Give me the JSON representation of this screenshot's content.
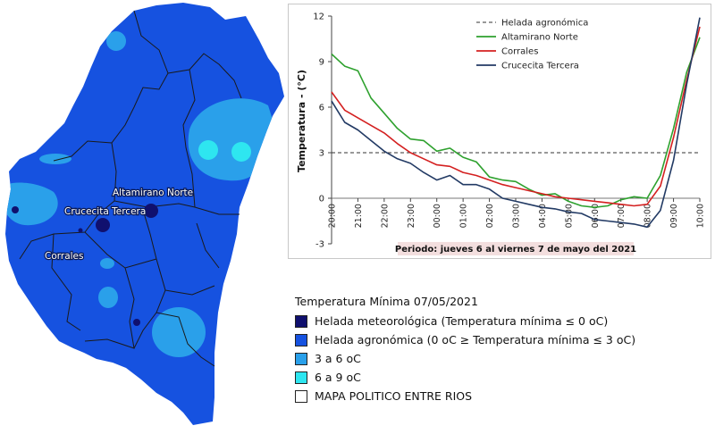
{
  "map": {
    "stations": [
      {
        "name": "Altamirano Norte"
      },
      {
        "name": "Crucecita Tercera"
      },
      {
        "name": "Corrales"
      }
    ]
  },
  "legend": {
    "title": "Temperatura Mínima 07/05/2021",
    "items": [
      {
        "label": "Helada meteorológica (Temperatura mínima ≤ 0 oC)",
        "color": "#10106e"
      },
      {
        "label": "Helada agronómica  (0 oC ≥ Temperatura mínima ≤ 3 oC)",
        "color": "#1652e0"
      },
      {
        "label": "3 a 6 oC",
        "color": "#2aa0ea"
      },
      {
        "label": "6 a 9 oC",
        "color": "#2ee6f0"
      },
      {
        "label": "MAPA POLITICO ENTRE RIOS",
        "color": "#ffffff"
      }
    ]
  },
  "chart_data": {
    "type": "line",
    "title": "",
    "xlabel": "",
    "ylabel": "Temperatura - (°C)",
    "period_label": "Periodo: jueves 6 al viernes 7 de mayo del 2021",
    "ylim": [
      -3,
      12
    ],
    "yticks": [
      -3,
      0,
      3,
      6,
      9,
      12
    ],
    "x_tick_labels": [
      "20:00",
      "21:00",
      "22:00",
      "23:00",
      "00:00",
      "01:00",
      "02:00",
      "03:00",
      "04:00",
      "05:00",
      "06:00",
      "07:00",
      "08:00",
      "09:00",
      "10:00"
    ],
    "x_hours": [
      0,
      0.5,
      1,
      1.5,
      2,
      2.5,
      3,
      3.5,
      4,
      4.5,
      5,
      5.5,
      6,
      6.5,
      7,
      7.5,
      8,
      8.5,
      9,
      9.5,
      10,
      10.5,
      11,
      11.5,
      12,
      12.5,
      13,
      13.5,
      14
    ],
    "series": [
      {
        "name": "Helada agronómica",
        "color": "#333333",
        "dashed": true,
        "values": [
          3,
          3,
          3,
          3,
          3,
          3,
          3,
          3,
          3,
          3,
          3,
          3,
          3,
          3,
          3,
          3,
          3,
          3,
          3,
          3,
          3,
          3,
          3,
          3,
          3,
          3,
          3,
          3,
          3
        ]
      },
      {
        "name": "Altamirano Norte",
        "color": "#2ea12e",
        "dashed": false,
        "values": [
          9.5,
          8.7,
          8.4,
          6.6,
          5.6,
          4.6,
          3.9,
          3.8,
          3.1,
          3.3,
          2.7,
          2.4,
          1.4,
          1.2,
          1.1,
          0.6,
          0.2,
          0.3,
          -0.2,
          -0.5,
          -0.6,
          -0.5,
          -0.1,
          0.1,
          0,
          1.5,
          4.6,
          8.3,
          10.6
        ]
      },
      {
        "name": "Corrales",
        "color": "#d42020",
        "dashed": false,
        "values": [
          7,
          5.8,
          5.3,
          4.8,
          4.3,
          3.6,
          3,
          2.6,
          2.2,
          2.1,
          1.7,
          1.5,
          1.2,
          0.9,
          0.7,
          0.5,
          0.3,
          0.1,
          0,
          -0.1,
          -0.2,
          -0.3,
          -0.4,
          -0.5,
          -0.4,
          0.8,
          4,
          7.8,
          11.3
        ]
      },
      {
        "name": "Crucecita Tercera",
        "color": "#223a64",
        "dashed": false,
        "values": [
          6.4,
          5,
          4.5,
          3.8,
          3.1,
          2.6,
          2.3,
          1.7,
          1.2,
          1.5,
          0.9,
          0.9,
          0.6,
          0,
          -0.2,
          -0.4,
          -0.6,
          -0.7,
          -0.9,
          -1,
          -1.4,
          -1.5,
          -1.6,
          -1.7,
          -1.9,
          -0.8,
          2.5,
          7.5,
          11.9
        ]
      }
    ]
  }
}
